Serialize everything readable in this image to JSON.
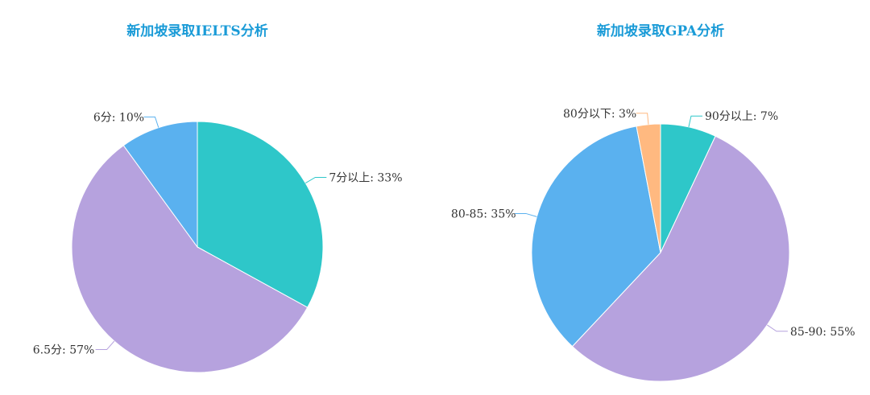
{
  "chart_data": [
    {
      "type": "pie",
      "title": "新加坡录取IELTS分析",
      "slices": [
        {
          "label": "7分以上",
          "value": 33,
          "display": "7分以上: 33%",
          "color": "#2ec7c9"
        },
        {
          "label": "6.5分",
          "value": 57,
          "display": "6.5分: 57%",
          "color": "#b6a2de"
        },
        {
          "label": "6分",
          "value": 10,
          "display": "6分: 10%",
          "color": "#5ab1ef"
        }
      ]
    },
    {
      "type": "pie",
      "title": "新加坡录取GPA分析",
      "slices": [
        {
          "label": "90分以上",
          "value": 7,
          "display": "90分以上: 7%",
          "color": "#2ec7c9"
        },
        {
          "label": "85-90",
          "value": 55,
          "display": "85-90: 55%",
          "color": "#b6a2de"
        },
        {
          "label": "80-85",
          "value": 35,
          "display": "80-85: 35%",
          "color": "#5ab1ef"
        },
        {
          "label": "80分以下",
          "value": 3,
          "display": "80分以下: 3%",
          "color": "#ffb980"
        }
      ]
    }
  ]
}
